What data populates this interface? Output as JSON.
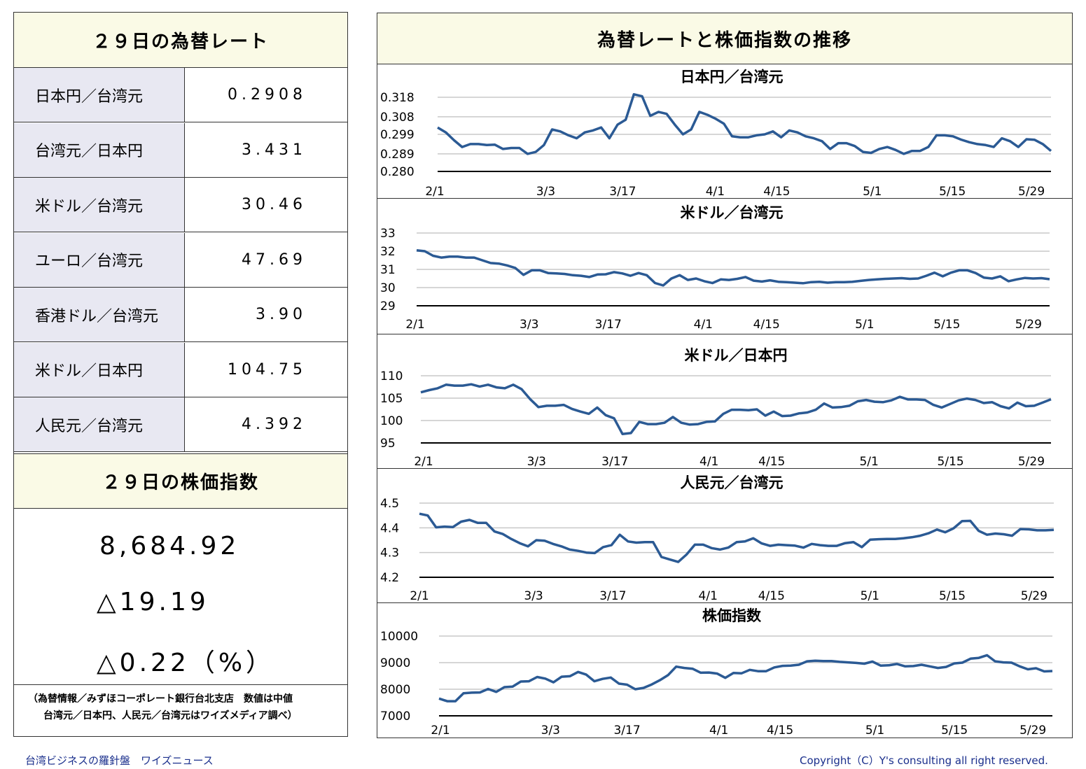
{
  "rates": {
    "title": "２９日の為替レート",
    "rows": [
      {
        "label": "日本円／台湾元",
        "value": "0.2908"
      },
      {
        "label": "台湾元／日本円",
        "value": "3.431"
      },
      {
        "label": "米ドル／台湾元",
        "value": "30.46"
      },
      {
        "label": "ユーロ／台湾元",
        "value": "47.69"
      },
      {
        "label": "香港ドル／台湾元",
        "value": "3.90"
      },
      {
        "label": "米ドル／日本円",
        "value": "104.75"
      },
      {
        "label": "人民元／台湾元",
        "value": "4.392"
      }
    ]
  },
  "stock": {
    "title": "２９日の株価指数",
    "value": "8,684.92",
    "change": "△19.19",
    "change_pct": "△0.22（%）"
  },
  "source_note": {
    "line1": "（為替情報／みずほコーポレート銀行台北支店　数値は中値",
    "line2": "台湾元／日本円、人民元／台湾元はワイズメディア調べ）"
  },
  "charts_title": "為替レートと株価指数の推移",
  "footer": {
    "left": "台湾ビジネスの羅針盤　ワイズニュース",
    "right": "Copyright（C）Y's consulting all right reserved."
  },
  "chart_data": [
    {
      "type": "line",
      "title": "日本円／台湾元",
      "x_ticks": [
        "2/1",
        "3/3",
        "3/17",
        "4/1",
        "4/15",
        "5/1",
        "5/15",
        "5/29"
      ],
      "y_ticks": [
        "0.318",
        "0.308",
        "0.299",
        "0.289",
        "0.280"
      ],
      "ylim": [
        0.28,
        0.318
      ],
      "color": "#2b5a94",
      "values": [
        0.3025,
        0.3,
        0.296,
        0.2925,
        0.294,
        0.294,
        0.2935,
        0.2937,
        0.2915,
        0.292,
        0.292,
        0.289,
        0.29,
        0.2935,
        0.3015,
        0.3005,
        0.2985,
        0.297,
        0.3,
        0.301,
        0.3025,
        0.297,
        0.304,
        0.3065,
        0.3195,
        0.3185,
        0.3085,
        0.3105,
        0.3095,
        0.304,
        0.299,
        0.3015,
        0.3105,
        0.309,
        0.307,
        0.3045,
        0.298,
        0.2975,
        0.2975,
        0.2985,
        0.299,
        0.3005,
        0.2975,
        0.301,
        0.3,
        0.298,
        0.297,
        0.2955,
        0.2915,
        0.2945,
        0.2945,
        0.293,
        0.29,
        0.2895,
        0.2915,
        0.2925,
        0.291,
        0.289,
        0.2905,
        0.2905,
        0.2925,
        0.2985,
        0.2985,
        0.298,
        0.2963,
        0.295,
        0.294,
        0.2935,
        0.2925,
        0.297,
        0.2955,
        0.2925,
        0.2965,
        0.2962,
        0.294,
        0.2905
      ]
    },
    {
      "type": "line",
      "title": "米ドル／台湾元",
      "x_ticks": [
        "2/1",
        "3/3",
        "3/17",
        "4/1",
        "4/15",
        "5/1",
        "5/15",
        "5/29"
      ],
      "y_ticks": [
        "33",
        "32",
        "31",
        "30",
        "29"
      ],
      "ylim": [
        29,
        33
      ],
      "color": "#2b5a94",
      "values": [
        32.05,
        32.0,
        31.75,
        31.65,
        31.7,
        31.7,
        31.65,
        31.65,
        31.5,
        31.35,
        31.32,
        31.22,
        31.08,
        30.7,
        30.95,
        30.95,
        30.8,
        30.78,
        30.75,
        30.68,
        30.65,
        30.58,
        30.72,
        30.73,
        30.85,
        30.78,
        30.65,
        30.8,
        30.68,
        30.25,
        30.12,
        30.5,
        30.68,
        30.42,
        30.5,
        30.35,
        30.25,
        30.45,
        30.42,
        30.48,
        30.58,
        30.38,
        30.33,
        30.4,
        30.32,
        30.3,
        30.27,
        30.24,
        30.3,
        30.32,
        30.27,
        30.3,
        30.3,
        30.32,
        30.37,
        30.42,
        30.45,
        30.48,
        30.5,
        30.52,
        30.48,
        30.5,
        30.65,
        30.82,
        30.62,
        30.82,
        30.95,
        30.95,
        30.8,
        30.55,
        30.5,
        30.62,
        30.35,
        30.45,
        30.53,
        30.5,
        30.52,
        30.46
      ]
    },
    {
      "type": "line",
      "title": "米ドル／日本円",
      "x_ticks": [
        "2/1",
        "3/3",
        "3/17",
        "4/1",
        "4/15",
        "5/1",
        "5/15",
        "5/29"
      ],
      "y_ticks": [
        "110",
        "105",
        "100",
        "95"
      ],
      "ylim": [
        95,
        110
      ],
      "color": "#2b5a94",
      "values": [
        106.3,
        106.8,
        107.2,
        108.0,
        107.8,
        107.8,
        108.1,
        107.6,
        108.0,
        107.4,
        107.2,
        108.0,
        107.0,
        104.8,
        103.0,
        103.3,
        103.3,
        103.5,
        102.6,
        102.0,
        101.5,
        102.9,
        101.2,
        100.5,
        97.0,
        97.2,
        99.7,
        99.2,
        99.2,
        99.5,
        100.8,
        99.5,
        99.1,
        99.2,
        99.7,
        99.8,
        101.5,
        102.4,
        102.4,
        102.3,
        102.5,
        101.1,
        102.0,
        101.0,
        101.1,
        101.6,
        101.8,
        102.4,
        103.8,
        102.9,
        103.0,
        103.3,
        104.3,
        104.6,
        104.2,
        104.1,
        104.5,
        105.3,
        104.7,
        104.7,
        104.6,
        103.5,
        102.9,
        103.7,
        104.5,
        104.9,
        104.6,
        103.9,
        104.1,
        103.2,
        102.7,
        104.0,
        103.2,
        103.3,
        104.0,
        104.75
      ]
    },
    {
      "type": "line",
      "title": "人民元／台湾元",
      "x_ticks": [
        "2/1",
        "3/3",
        "3/17",
        "4/1",
        "4/15",
        "5/1",
        "5/15",
        "5/29"
      ],
      "y_ticks": [
        "4.5",
        "4.4",
        "4.3",
        "4.2"
      ],
      "ylim": [
        4.2,
        4.5
      ],
      "color": "#2b5a94",
      "values": [
        4.457,
        4.45,
        4.402,
        4.405,
        4.403,
        4.425,
        4.432,
        4.42,
        4.42,
        4.385,
        4.375,
        4.355,
        4.338,
        4.325,
        4.35,
        4.348,
        4.335,
        4.325,
        4.312,
        4.307,
        4.3,
        4.298,
        4.322,
        4.33,
        4.372,
        4.345,
        4.34,
        4.342,
        4.342,
        4.282,
        4.272,
        4.262,
        4.292,
        4.332,
        4.332,
        4.318,
        4.312,
        4.32,
        4.342,
        4.345,
        4.358,
        4.337,
        4.327,
        4.332,
        4.33,
        4.328,
        4.32,
        4.335,
        4.33,
        4.327,
        4.327,
        4.338,
        4.342,
        4.322,
        4.352,
        4.354,
        4.355,
        4.355,
        4.358,
        4.362,
        4.368,
        4.378,
        4.393,
        4.382,
        4.398,
        4.427,
        4.428,
        4.388,
        4.372,
        4.377,
        4.374,
        4.368,
        4.395,
        4.394,
        4.39,
        4.39,
        4.392
      ]
    },
    {
      "type": "line",
      "title": "株価指数",
      "x_ticks": [
        "2/1",
        "3/3",
        "3/17",
        "4/1",
        "4/15",
        "5/1",
        "5/15",
        "5/29"
      ],
      "y_ticks": [
        "10000",
        "9000",
        "8000",
        "7000"
      ],
      "ylim": [
        7000,
        10000
      ],
      "color": "#2b5a94",
      "values": [
        7650,
        7550,
        7550,
        7850,
        7870,
        7880,
        8010,
        7900,
        8080,
        8100,
        8290,
        8300,
        8460,
        8400,
        8260,
        8470,
        8490,
        8650,
        8550,
        8300,
        8390,
        8440,
        8210,
        8170,
        8000,
        8050,
        8180,
        8340,
        8530,
        8850,
        8800,
        8770,
        8620,
        8630,
        8590,
        8430,
        8610,
        8600,
        8730,
        8680,
        8680,
        8820,
        8880,
        8890,
        8920,
        9050,
        9070,
        9060,
        9060,
        9030,
        9010,
        8990,
        8960,
        9040,
        8890,
        8900,
        8950,
        8860,
        8870,
        8920,
        8860,
        8800,
        8840,
        8970,
        9000,
        9150,
        9180,
        9280,
        9050,
        9010,
        9000,
        8860,
        8750,
        8790,
        8670,
        8685
      ]
    }
  ]
}
